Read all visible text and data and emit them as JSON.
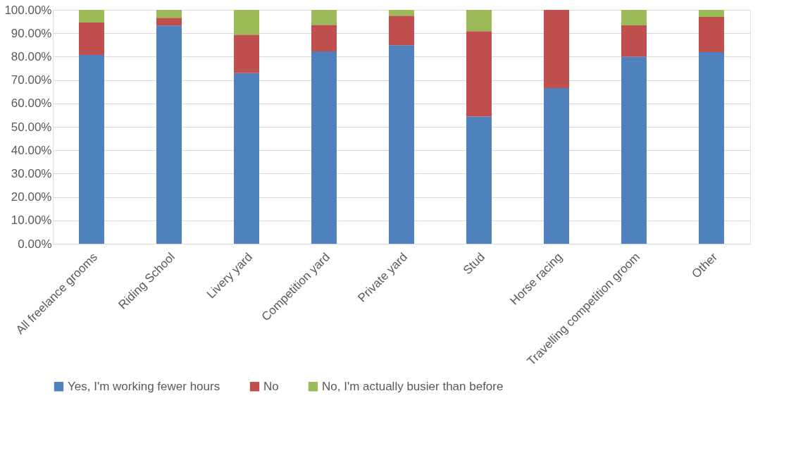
{
  "chart_data": {
    "type": "bar",
    "stacked": true,
    "categories": [
      "All freelance grooms",
      "Riding School",
      "Livery yard",
      "Competition yard",
      "Private yard",
      "Stud",
      "Horse racing",
      "Travelling competition groom",
      "Other"
    ],
    "series": [
      {
        "name": "Yes, I'm working fewer hours",
        "color": "#4f81bd",
        "values": [
          80.7,
          93.3,
          73.0,
          82.2,
          84.9,
          54.4,
          66.6,
          80.0,
          81.9
        ]
      },
      {
        "name": "No",
        "color": "#c0504d",
        "values": [
          13.9,
          3.3,
          16.4,
          11.4,
          12.6,
          36.5,
          33.4,
          13.4,
          15.1
        ]
      },
      {
        "name": "No, I'm actually busier than before",
        "color": "#9bbb59",
        "values": [
          5.4,
          3.4,
          10.6,
          6.4,
          2.5,
          9.1,
          0,
          6.6,
          3.0
        ]
      }
    ],
    "ylim": [
      0,
      100
    ],
    "yticks": [
      {
        "value": 0,
        "label": "0.00%"
      },
      {
        "value": 10,
        "label": "10.00%"
      },
      {
        "value": 20,
        "label": "20.00%"
      },
      {
        "value": 30,
        "label": "30.00%"
      },
      {
        "value": 40,
        "label": "40.00%"
      },
      {
        "value": 50,
        "label": "50.00%"
      },
      {
        "value": 60,
        "label": "60.00%"
      },
      {
        "value": 70,
        "label": "70.00%"
      },
      {
        "value": 80,
        "label": "80.00%"
      },
      {
        "value": 90,
        "label": "90.00%"
      },
      {
        "value": 100,
        "label": "100.00%"
      }
    ],
    "grid": "y",
    "legend": "bottom"
  }
}
